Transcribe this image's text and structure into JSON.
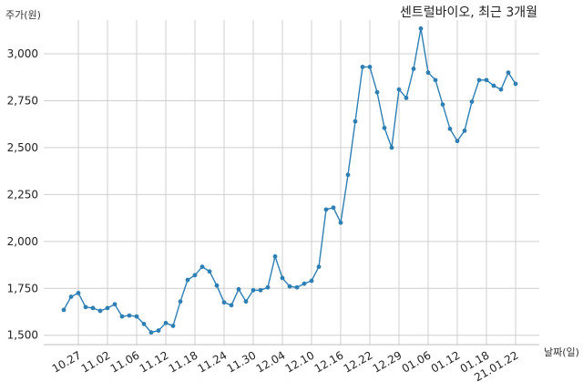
{
  "chart_data": {
    "type": "line",
    "title": "센트럴바이오, 최근 3개월",
    "ylabel": "주가(원)",
    "xlabel": "날짜(일)",
    "ylim": [
      1450,
      3180
    ],
    "yticks": [
      1500,
      1750,
      2000,
      2250,
      2500,
      2750,
      3000
    ],
    "ytick_labels": [
      "1,500",
      "1,750",
      "2,000",
      "2,250",
      "2,500",
      "2,750",
      "3,000"
    ],
    "xticks": [
      {
        "label": "10.27",
        "at": 2
      },
      {
        "label": "11.02",
        "at": 6
      },
      {
        "label": "11.06",
        "at": 10
      },
      {
        "label": "11.12",
        "at": 14
      },
      {
        "label": "11.18",
        "at": 18
      },
      {
        "label": "11.24",
        "at": 22
      },
      {
        "label": "11.30",
        "at": 26
      },
      {
        "label": "12.04",
        "at": 30
      },
      {
        "label": "12.10",
        "at": 34
      },
      {
        "label": "12.16",
        "at": 38
      },
      {
        "label": "12.22",
        "at": 42
      },
      {
        "label": "12.29",
        "at": 46
      },
      {
        "label": "01.06",
        "at": 50
      },
      {
        "label": "01.12",
        "at": 54
      },
      {
        "label": "01.18",
        "at": 58
      },
      {
        "label": "21.01.22",
        "at": 62
      }
    ],
    "grid": true,
    "series": [
      {
        "color": "#2e7fb4",
        "values": [
          1635,
          1705,
          1725,
          1650,
          1645,
          1630,
          1645,
          1665,
          1600,
          1605,
          1600,
          1560,
          1515,
          1525,
          1565,
          1550,
          1680,
          1795,
          1820,
          1865,
          1840,
          1765,
          1675,
          1660,
          1745,
          1680,
          1740,
          1740,
          1755,
          1920,
          1805,
          1760,
          1755,
          1775,
          1790,
          1865,
          2170,
          2180,
          2100,
          2355,
          2640,
          2930,
          2930,
          2795,
          2605,
          2500,
          2810,
          2765,
          2920,
          3135,
          2900,
          2860,
          2730,
          2600,
          2535,
          2590,
          2745,
          2860,
          2860,
          2830,
          2810,
          2900,
          2840
        ]
      }
    ]
  }
}
